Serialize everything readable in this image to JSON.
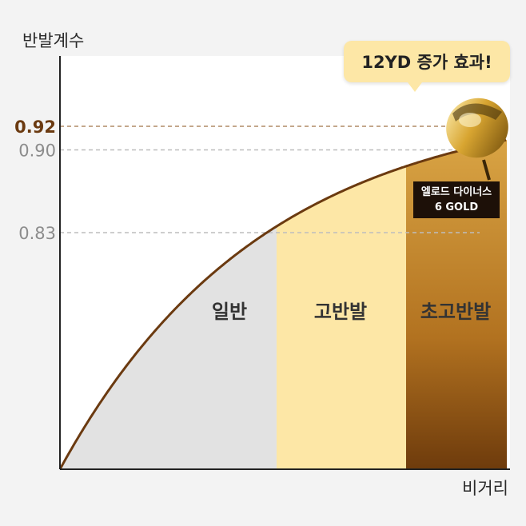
{
  "chart_data": {
    "type": "area",
    "ylabel": "반발계수",
    "xlabel": "비거리",
    "yticks": [
      {
        "value": 0.83,
        "label": "0.83",
        "highlight": false
      },
      {
        "value": 0.9,
        "label": "0.90",
        "highlight": false
      },
      {
        "value": 0.92,
        "label": "0.92",
        "highlight": true
      }
    ],
    "regions": [
      {
        "name": "일반",
        "color": "#e2e2e2"
      },
      {
        "name": "고반발",
        "color": "#fde7a6"
      },
      {
        "name": "초고반발",
        "color": "#b77a22"
      }
    ],
    "curve_color": "#6b3a10",
    "annotation": "12YD 증가 효과!",
    "product": {
      "line1": "엘로드 다이너스",
      "line2": "6 GOLD"
    }
  }
}
